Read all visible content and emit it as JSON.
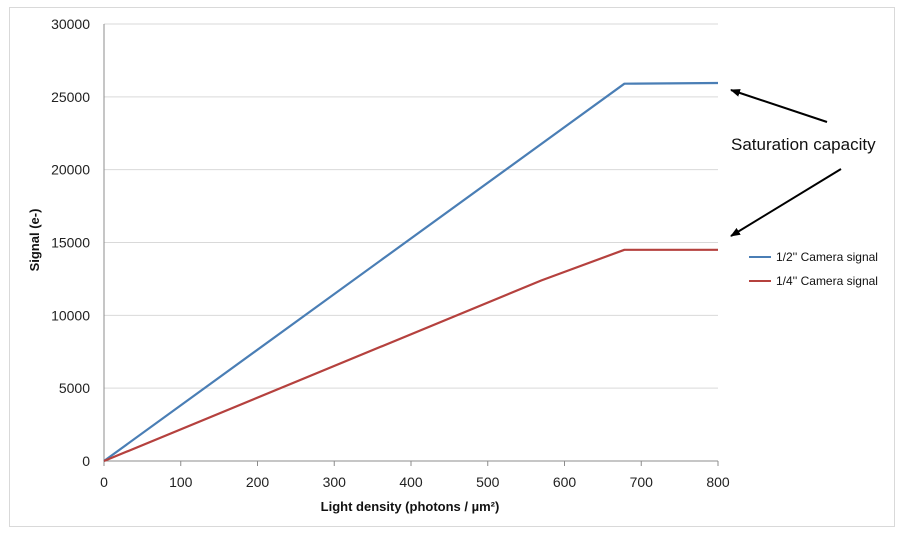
{
  "chart_data": {
    "type": "line",
    "title": "",
    "xlabel": "Light density (photons / µm²)",
    "ylabel": "Signal (e-)",
    "xlim": [
      0,
      800
    ],
    "ylim": [
      0,
      30000
    ],
    "x_ticks": [
      "0",
      "100",
      "200",
      "300",
      "400",
      "500",
      "600",
      "700",
      "800"
    ],
    "y_ticks": [
      "0",
      "5000",
      "10000",
      "15000",
      "20000",
      "25000",
      "30000"
    ],
    "grid": "horizontal",
    "legend_position": "right",
    "series": [
      {
        "name": "1/2'' Camera signal",
        "color": "#4a7eb5",
        "points": [
          [
            0,
            0
          ],
          [
            678,
            25900
          ],
          [
            800,
            25950
          ]
        ]
      },
      {
        "name": "1/4'' Camera signal",
        "color": "#b5413e",
        "points": [
          [
            0,
            0
          ],
          [
            570,
            12400
          ],
          [
            678,
            14500
          ],
          [
            800,
            14500
          ]
        ]
      }
    ],
    "annotation": {
      "text": "Saturation capacity",
      "targets": [
        [
          800,
          25950
        ],
        [
          800,
          14500
        ]
      ]
    }
  }
}
